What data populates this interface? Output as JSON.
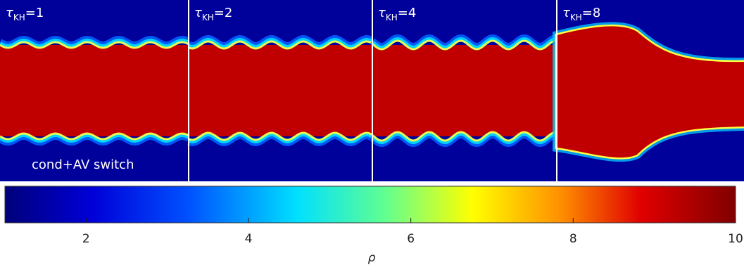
{
  "panels": [
    {
      "symbol": "τ",
      "subscript": "KH",
      "suffix": "=1"
    },
    {
      "symbol": "τ",
      "subscript": "KH",
      "suffix": "=2"
    },
    {
      "symbol": "τ",
      "subscript": "KH",
      "suffix": "=4"
    },
    {
      "symbol": "τ",
      "subscript": "KH",
      "suffix": "=8"
    }
  ],
  "annotation": "cond+AV switch",
  "colorbar": {
    "clim": [
      1,
      10
    ],
    "ticks": [
      2,
      4,
      6,
      8,
      10
    ],
    "label": "ρ"
  }
}
